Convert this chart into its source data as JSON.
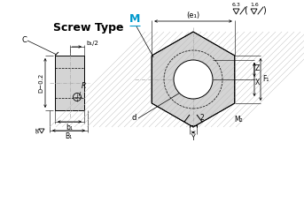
{
  "bg_color": "#ffffff",
  "title_text": "Screw Type",
  "label_M": "M",
  "label_C": "C",
  "label_D": "D−0.2",
  "label_R": "R",
  "label_b1half": "b₁/2",
  "label_b1": "b₁",
  "label_B1": "B₁",
  "label_16": "16",
  "label_e1": "(e₁)",
  "label_d": "d",
  "label_Y": "Y",
  "label_2": "2",
  "label_M2": "M₂",
  "label_Z": "Z",
  "label_X": "X",
  "label_F1": "F₁",
  "label_63": "6.3",
  "label_16b": "1.6",
  "line_color": "#000000",
  "M_color": "#0099cc",
  "shading_color": "#d4d4d4",
  "center_color": "#aaaaaa",
  "dim_color": "#000000"
}
